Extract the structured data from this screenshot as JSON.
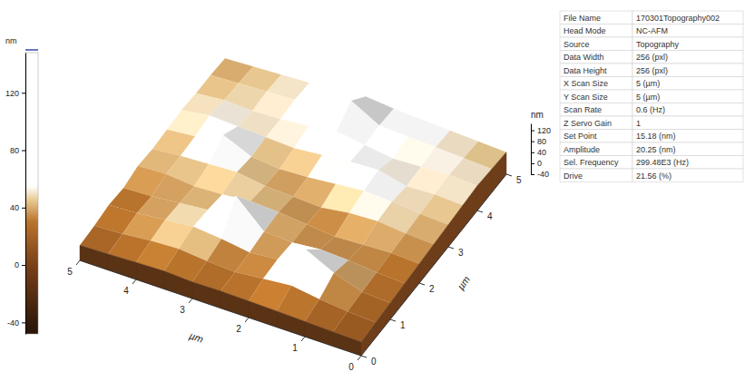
{
  "chart_data": {
    "type": "surface3d",
    "x": [
      0,
      0.5,
      1,
      1.5,
      2,
      2.5,
      3,
      3.5,
      4,
      4.5,
      5
    ],
    "y": [
      0,
      0.5,
      1,
      1.5,
      2,
      2.5,
      3,
      3.5,
      4,
      4.5,
      5
    ],
    "z": [
      [
        10,
        12,
        15,
        18,
        20,
        22,
        20,
        25,
        22,
        18,
        15
      ],
      [
        15,
        20,
        30,
        45,
        35,
        25,
        30,
        40,
        35,
        25,
        20
      ],
      [
        20,
        25,
        60,
        110,
        40,
        30,
        45,
        55,
        45,
        35,
        30
      ],
      [
        25,
        30,
        40,
        45,
        35,
        40,
        135,
        50,
        40,
        30,
        25
      ],
      [
        30,
        35,
        30,
        25,
        35,
        45,
        50,
        40,
        35,
        45,
        40
      ],
      [
        35,
        40,
        50,
        45,
        30,
        35,
        40,
        55,
        50,
        45,
        35
      ],
      [
        40,
        45,
        55,
        60,
        50,
        40,
        35,
        45,
        90,
        50,
        40
      ],
      [
        45,
        50,
        45,
        70,
        65,
        55,
        45,
        50,
        55,
        60,
        45
      ],
      [
        50,
        55,
        50,
        45,
        60,
        75,
        60,
        50,
        45,
        50,
        40
      ],
      [
        45,
        50,
        55,
        60,
        65,
        120,
        70,
        55,
        50,
        45,
        40
      ],
      [
        40,
        45,
        50,
        55,
        60,
        70,
        60,
        50,
        45,
        40,
        35
      ]
    ],
    "xlim": [
      0,
      5
    ],
    "ylim": [
      0,
      5
    ],
    "zlim": [
      -40,
      145
    ],
    "xticks": [
      0,
      1,
      2,
      3,
      4,
      5
    ],
    "yticks": [
      0,
      1,
      2,
      3,
      4,
      5
    ],
    "zticks": [
      -40,
      0,
      40,
      80,
      120
    ],
    "x_label": "µm",
    "y_label": "µm",
    "z_label": "nm",
    "colorbar": {
      "label": "nm",
      "range": [
        -48,
        148
      ],
      "ticks": [
        -40,
        0,
        40,
        80,
        120
      ]
    }
  },
  "info_table": {
    "rows": [
      [
        "File Name",
        "170301Topography002"
      ],
      [
        "Head Mode",
        "NC-AFM"
      ],
      [
        "Source",
        "Topography"
      ],
      [
        "Data Width",
        "256 (pxl)"
      ],
      [
        "Data Height",
        "256 (pxl)"
      ],
      [
        "X Scan Size",
        "5 (µm)"
      ],
      [
        "Y Scan Size",
        "5 (µm)"
      ],
      [
        "Scan Rate",
        "0.6 (Hz)"
      ],
      [
        "Z Servo Gain",
        "1"
      ],
      [
        "Set Point",
        "15.18 (nm)"
      ],
      [
        "Amplitude",
        "20.25 (nm)"
      ],
      [
        "Sel. Frequency",
        "299.48E3 (Hz)"
      ],
      [
        "Drive",
        "21.56 (%)"
      ]
    ]
  }
}
